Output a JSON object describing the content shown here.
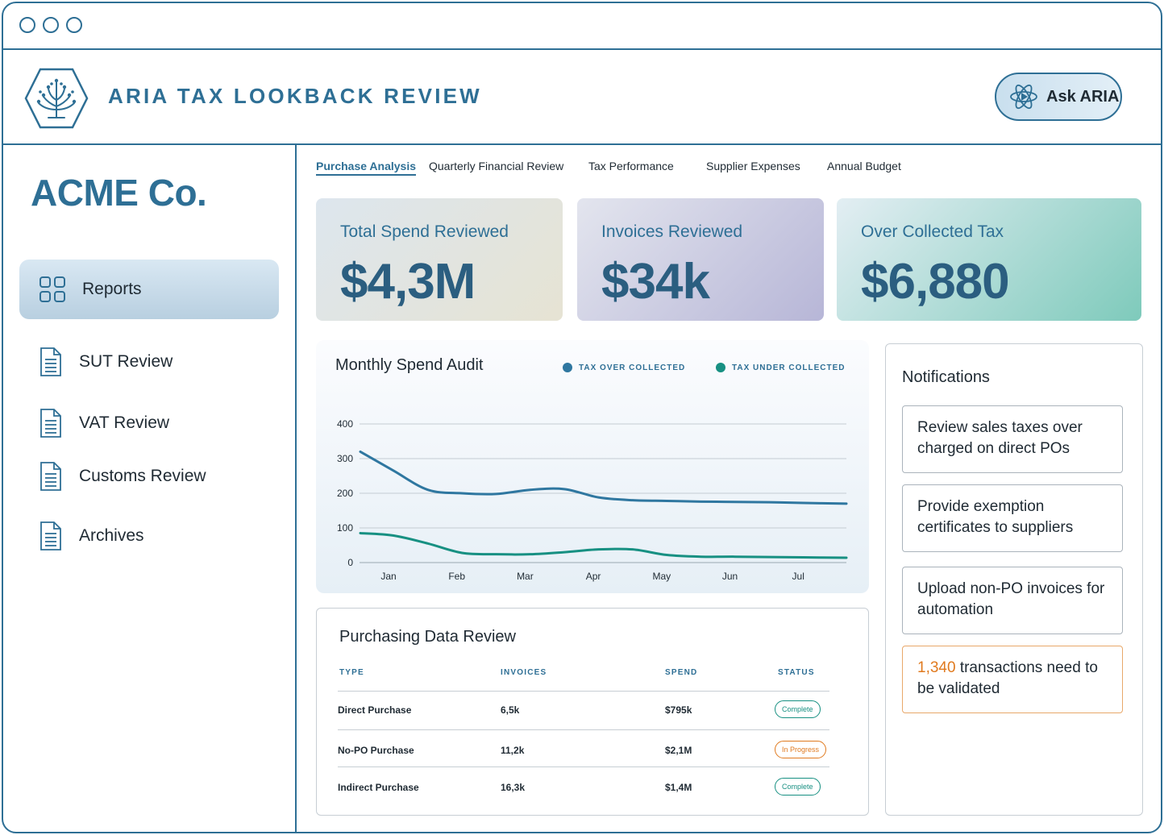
{
  "header": {
    "app_title": "ARIA TAX LOOKBACK REVIEW",
    "ask_button": "Ask ARIA"
  },
  "sidebar": {
    "company": "ACME Co.",
    "items": [
      {
        "label": "Reports",
        "icon": "grid-icon"
      },
      {
        "label": "SUT Review",
        "icon": "document-icon"
      },
      {
        "label": "VAT Review",
        "icon": "document-icon"
      },
      {
        "label": "Customs Review",
        "icon": "document-icon"
      },
      {
        "label": "Archives",
        "icon": "document-icon"
      }
    ]
  },
  "tabs": [
    "Purchase Analysis",
    "Quarterly Financial Review",
    "Tax Performance",
    "Supplier Expenses",
    "Annual Budget"
  ],
  "stats": [
    {
      "label": "Total Spend Reviewed",
      "value": "$4,3M"
    },
    {
      "label": "Invoices Reviewed",
      "value": "$34k"
    },
    {
      "label": "Over Collected Tax",
      "value": "$6,880"
    }
  ],
  "chart_data": {
    "type": "line",
    "title": "Monthly Spend Audit",
    "ylim": [
      0,
      400
    ],
    "yticks": [
      0,
      100,
      200,
      300,
      400
    ],
    "categories": [
      "Jan",
      "Feb",
      "Mar",
      "Apr",
      "May",
      "Jun",
      "Jul"
    ],
    "x": [
      0.0,
      0.5,
      1.0,
      1.5,
      2.0,
      2.5,
      3.0,
      3.5,
      4.0,
      4.5,
      5.0,
      5.5,
      6.0,
      6.5,
      7.0
    ],
    "series": [
      {
        "name": "TAX OVER COLLECTED",
        "color": "#2f77a0",
        "values": [
          320,
          265,
          210,
          200,
          198,
          210,
          212,
          188,
          180,
          178,
          176,
          175,
          174,
          172,
          170
        ]
      },
      {
        "name": "TAX UNDER COLLECTED",
        "color": "#179082",
        "values": [
          85,
          78,
          55,
          28,
          24,
          24,
          30,
          38,
          38,
          22,
          17,
          17,
          16,
          15,
          14
        ]
      }
    ],
    "grid": true,
    "legend": "top-right"
  },
  "table": {
    "title": "Purchasing Data Review",
    "headers": [
      "TYPE",
      "INVOICES",
      "SPEND",
      "STATUS"
    ],
    "rows": [
      {
        "type": "Direct Purchase",
        "invoices": "6,5k",
        "spend": "$795k",
        "status": "Complete"
      },
      {
        "type": "No-PO Purchase",
        "invoices": "11,2k",
        "spend": "$2,1M",
        "status": "In Progress"
      },
      {
        "type": "Indirect Purchase",
        "invoices": "16,3k",
        "spend": "$1,4M",
        "status": "Complete"
      }
    ],
    "status_colors": {
      "Complete": "#179082",
      "In Progress": "#e07a1f"
    }
  },
  "notifications": {
    "title": "Notifications",
    "items": [
      {
        "text": "Review sales taxes over charged on direct POs"
      },
      {
        "text": "Provide exemption certificates to suppliers"
      },
      {
        "text": "Upload non-PO invoices for automation"
      },
      {
        "highlight": "1,340",
        "text": " transactions need to be validated"
      }
    ]
  }
}
